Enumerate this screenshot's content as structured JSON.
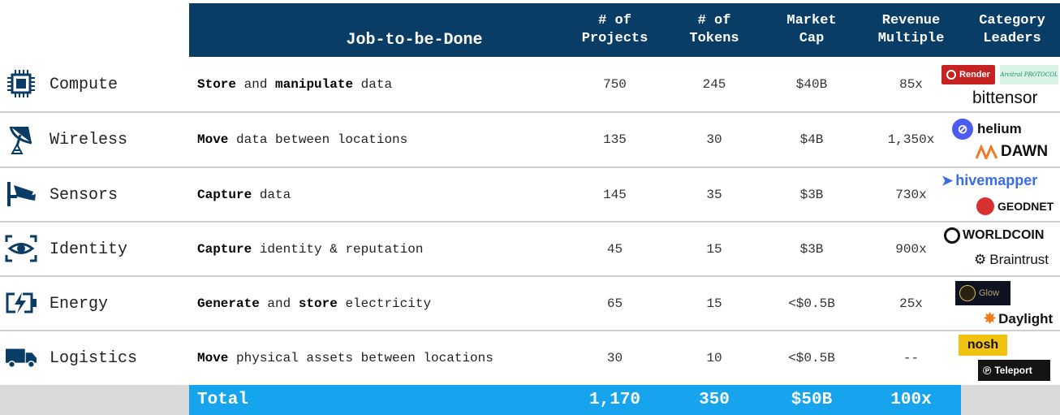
{
  "header": {
    "job": "Job-to-be-Done",
    "projects": "# of\nProjects",
    "tokens": "# of\nTokens",
    "market_cap": "Market\nCap",
    "revenue_multiple": "Revenue\nMultiple",
    "category_leaders": "Category\nLeaders"
  },
  "rows": [
    {
      "category": "Compute",
      "icon": "chip-icon",
      "job_parts": [
        {
          "t": "Store",
          "b": true
        },
        {
          "t": " and ",
          "b": false
        },
        {
          "t": "manipulate",
          "b": true
        },
        {
          "t": " data",
          "b": false
        }
      ],
      "projects": "750",
      "tokens": "245",
      "market_cap": "$40B",
      "multiple": "85x",
      "leaders": [
        "Render",
        "Arcitral PROTOCOL",
        "bittensor"
      ]
    },
    {
      "category": "Wireless",
      "icon": "satellite-dish-icon",
      "job_parts": [
        {
          "t": "Move",
          "b": true
        },
        {
          "t": " data between locations",
          "b": false
        }
      ],
      "projects": "135",
      "tokens": "30",
      "market_cap": "$4B",
      "multiple": "1,350x",
      "leaders": [
        "helium",
        "DAWN"
      ]
    },
    {
      "category": "Sensors",
      "icon": "camera-icon",
      "job_parts": [
        {
          "t": "Capture",
          "b": true
        },
        {
          "t": " data",
          "b": false
        }
      ],
      "projects": "145",
      "tokens": "35",
      "market_cap": "$3B",
      "multiple": "730x",
      "leaders": [
        "hivemapper",
        "GEODNET"
      ]
    },
    {
      "category": "Identity",
      "icon": "eye-scan-icon",
      "job_parts": [
        {
          "t": "Capture",
          "b": true
        },
        {
          "t": " identity & reputation",
          "b": false
        }
      ],
      "projects": "45",
      "tokens": "15",
      "market_cap": "$3B",
      "multiple": "900x",
      "leaders": [
        "WORLDCOIN",
        "Braintrust"
      ]
    },
    {
      "category": "Energy",
      "icon": "battery-bolt-icon",
      "job_parts": [
        {
          "t": "Generate",
          "b": true
        },
        {
          "t": " and ",
          "b": false
        },
        {
          "t": "store",
          "b": true
        },
        {
          "t": " electricity",
          "b": false
        }
      ],
      "projects": "65",
      "tokens": "15",
      "market_cap": "<$0.5B",
      "multiple": "25x",
      "leaders": [
        "Glow",
        "Daylight"
      ]
    },
    {
      "category": "Logistics",
      "icon": "truck-icon",
      "job_parts": [
        {
          "t": "Move",
          "b": true
        },
        {
          "t": " physical assets between locations",
          "b": false
        }
      ],
      "projects": "30",
      "tokens": "10",
      "market_cap": "<$0.5B",
      "multiple": "--",
      "leaders": [
        "nosh",
        "Teleport"
      ]
    }
  ],
  "total": {
    "label": "Total",
    "projects": "1,170",
    "tokens": "350",
    "market_cap": "$50B",
    "multiple": "100x"
  },
  "colors": {
    "header_bg": "#0a3d66",
    "total_bg": "#16a4ee",
    "icon_color": "#0a3d66"
  }
}
